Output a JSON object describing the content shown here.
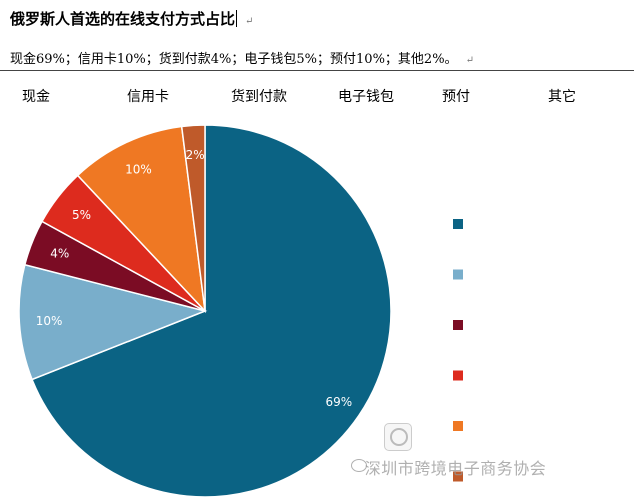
{
  "document": {
    "title": "俄罗斯人首选的在线支付方式占比",
    "subtitle": "现金69%；信用卡10%；货到付款4%；电子钱包5%；预付10%；其他2%。",
    "paragraph_mark": "↵"
  },
  "watermark": {
    "text": "深圳市跨境电子商务协会"
  },
  "chart_data": {
    "type": "pie",
    "title": "",
    "categories": [
      "现金",
      "信用卡",
      "货到付款",
      "电子钱包",
      "预付",
      "其它"
    ],
    "values": [
      69,
      10,
      4,
      5,
      10,
      2
    ],
    "value_labels": [
      "69%",
      "10%",
      "4%",
      "5%",
      "10%",
      "2%"
    ],
    "colors": [
      "#0b6384",
      "#79aecb",
      "#7b0c24",
      "#dd2b1e",
      "#ef7823",
      "#bf5a2a"
    ],
    "legend_placement": "right",
    "start_angle_deg": 0,
    "direction": "clockwise"
  }
}
